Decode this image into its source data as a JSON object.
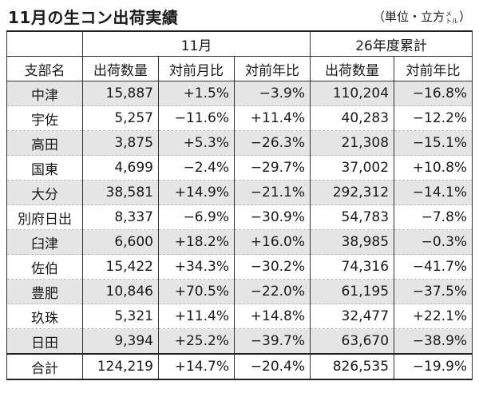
{
  "title": "11月の生コン出荷実績",
  "unit": {
    "prefix": "（単位・立方",
    "meter_top": "メ",
    "meter_bottom": "トル",
    "suffix": "）"
  },
  "header": {
    "group_month": "11月",
    "group_year": "26年度累計",
    "col_branch": "支部名",
    "col_month_volume": "出荷数量",
    "col_month_mom": "対前月比",
    "col_month_yoy": "対前年比",
    "col_year_volume": "出荷数量",
    "col_year_yoy": "対前年比"
  },
  "rows": [
    {
      "name": "中津",
      "m_vol": "15,887",
      "m_mom": "+1.5%",
      "m_yoy": "−3.9%",
      "y_vol": "110,204",
      "y_yoy": "−16.8%"
    },
    {
      "name": "宇佐",
      "m_vol": "5,257",
      "m_mom": "−11.6%",
      "m_yoy": "+11.4%",
      "y_vol": "40,283",
      "y_yoy": "−12.2%"
    },
    {
      "name": "高田",
      "m_vol": "3,875",
      "m_mom": "+5.3%",
      "m_yoy": "−26.3%",
      "y_vol": "21,308",
      "y_yoy": "−15.1%"
    },
    {
      "name": "国東",
      "m_vol": "4,699",
      "m_mom": "−2.4%",
      "m_yoy": "−29.7%",
      "y_vol": "37,002",
      "y_yoy": "+10.8%"
    },
    {
      "name": "大分",
      "m_vol": "38,581",
      "m_mom": "+14.9%",
      "m_yoy": "−21.1%",
      "y_vol": "292,312",
      "y_yoy": "−14.1%"
    },
    {
      "name": "別府日出",
      "m_vol": "8,337",
      "m_mom": "−6.9%",
      "m_yoy": "−30.9%",
      "y_vol": "54,783",
      "y_yoy": "−7.8%"
    },
    {
      "name": "臼津",
      "m_vol": "6,600",
      "m_mom": "+18.2%",
      "m_yoy": "+16.0%",
      "y_vol": "38,985",
      "y_yoy": "−0.3%"
    },
    {
      "name": "佐伯",
      "m_vol": "15,422",
      "m_mom": "+34.3%",
      "m_yoy": "−30.2%",
      "y_vol": "74,316",
      "y_yoy": "−41.7%"
    },
    {
      "name": "豊肥",
      "m_vol": "10,846",
      "m_mom": "+70.5%",
      "m_yoy": "−22.0%",
      "y_vol": "61,195",
      "y_yoy": "−37.5%"
    },
    {
      "name": "玖珠",
      "m_vol": "5,321",
      "m_mom": "+11.4%",
      "m_yoy": "+14.8%",
      "y_vol": "32,477",
      "y_yoy": "+22.1%"
    },
    {
      "name": "日田",
      "m_vol": "9,394",
      "m_mom": "+25.2%",
      "m_yoy": "−39.7%",
      "y_vol": "63,670",
      "y_yoy": "−38.9%"
    }
  ],
  "total": {
    "name": "合計",
    "m_vol": "124,219",
    "m_mom": "+14.7%",
    "m_yoy": "−20.4%",
    "y_vol": "826,535",
    "y_yoy": "−19.9%"
  }
}
